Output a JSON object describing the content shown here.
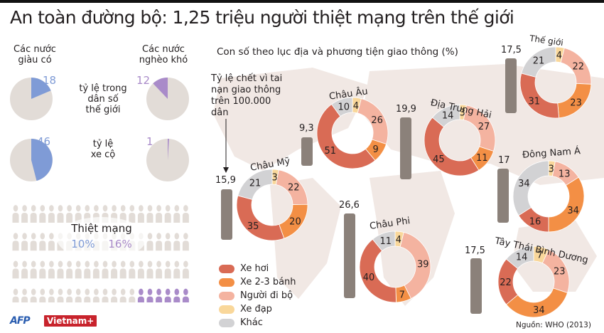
{
  "header": {
    "title": "An toàn đường bộ: 1,25 triệu người thiệt mạng trên thế giới"
  },
  "left_panel": {
    "rich_label": "Các nước\ngiàu có",
    "poor_label": "Các nước\nnghèo khó",
    "population_label": "tỷ lệ trong\ndân số\nthế giới",
    "vehicles_label": "tỷ lệ\nxe cộ",
    "rich_population": "18",
    "poor_population": "12",
    "rich_vehicles": "46",
    "poor_vehicles": "1",
    "deaths_label": "Thiệt mạng",
    "rich_deaths": "10%",
    "poor_deaths": "16%"
  },
  "right_panel": {
    "subtitle": "Con số theo lục địa và phương tiện giao thông (%)",
    "rate_note": "Tỷ lệ chết vì tai\nnạn giao thông\ntrên 100.000\ndân"
  },
  "legend": [
    {
      "label": "Xe hơi",
      "color": "#d96b55"
    },
    {
      "label": "Xe 2-3 bánh",
      "color": "#f38f45"
    },
    {
      "label": "Người đi bộ",
      "color": "#f4b3a0"
    },
    {
      "label": "Xe đạp",
      "color": "#f9d79a"
    },
    {
      "label": "Khác",
      "color": "#d2d2d4"
    }
  ],
  "colors": {
    "rich": "#7f9bd6",
    "poor": "#a98bc9",
    "neutral_person": "#e2dcd7",
    "bar": "#8b817a",
    "map": "#efe5e1"
  },
  "footer": {
    "source": "Nguồn: WHO (2013)",
    "logo_afp": "AFP",
    "logo_vn": "Vietnam+"
  },
  "chart_data": [
    {
      "type": "pie",
      "title": "Tỷ lệ trong dân số thế giới (%)",
      "categories": [
        "Các nước giàu có",
        "Các nước nghèo khó"
      ],
      "values": [
        18,
        12
      ]
    },
    {
      "type": "pie",
      "title": "Tỷ lệ xe cộ (%)",
      "categories": [
        "Các nước giàu có",
        "Các nước nghèo khó"
      ],
      "values": [
        46,
        1
      ]
    },
    {
      "type": "bar",
      "title": "Thiệt mạng (%)",
      "categories": [
        "Các nước giàu có",
        "Các nước nghèo khó"
      ],
      "values": [
        10,
        16
      ]
    },
    {
      "type": "bar",
      "title": "Tỷ lệ chết vì tai nạn giao thông trên 100.000 dân",
      "categories": [
        "Thế giới",
        "Châu Âu",
        "Địa Trung Hải",
        "Châu Mỹ",
        "Đông Nam Á",
        "Châu Phi",
        "Tây Thái Bình Dương"
      ],
      "values": [
        17.5,
        9.3,
        19.9,
        15.9,
        17,
        26.6,
        17.5
      ],
      "value_labels": [
        "17,5",
        "9,3",
        "19,9",
        "15,9",
        "17",
        "26,6",
        "17,5"
      ]
    },
    {
      "type": "pie",
      "title": "Con số theo lục địa và phương tiện giao thông (%)",
      "categories": [
        "Xe hơi",
        "Xe 2-3 bánh",
        "Người đi bộ",
        "Xe đạp",
        "Khác"
      ],
      "series": [
        {
          "name": "Thế giới",
          "values": [
            31,
            23,
            22,
            4,
            21
          ]
        },
        {
          "name": "Châu Âu",
          "values": [
            51,
            9,
            26,
            4,
            10
          ]
        },
        {
          "name": "Địa Trung Hải",
          "values": [
            45,
            11,
            27,
            3,
            14
          ]
        },
        {
          "name": "Châu Mỹ",
          "values": [
            35,
            20,
            22,
            3,
            21
          ]
        },
        {
          "name": "Đông Nam Á",
          "values": [
            16,
            34,
            13,
            3,
            34
          ]
        },
        {
          "name": "Châu Phi",
          "values": [
            40,
            7,
            39,
            4,
            11
          ]
        },
        {
          "name": "Tây Thái Bình Dương",
          "values": [
            22,
            34,
            23,
            7,
            14
          ]
        }
      ]
    }
  ]
}
